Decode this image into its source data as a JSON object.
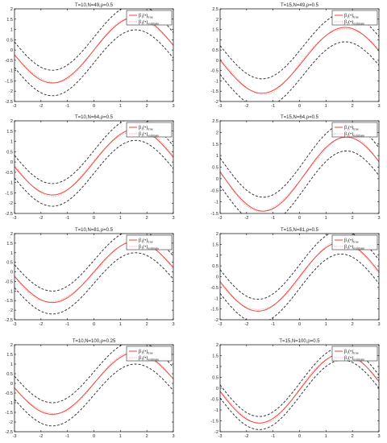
{
  "figure": {
    "legend_labels": [
      {
        "base": "β",
        "sub1": "1",
        "mid": "(•)",
        "sub2": "true"
      },
      {
        "base": "β",
        "sub1": "1",
        "mid": "(•)",
        "sub2": "estimate"
      }
    ],
    "colors": {
      "true_curve": "#e8463f",
      "estimate_curve": "#e8463f",
      "band": "#222222",
      "axes": "#000000"
    }
  },
  "chart_data": [
    {
      "type": "line",
      "title": "T=10,N=49,ρ=0.5",
      "xlim": [
        -3,
        3
      ],
      "ylim": [
        -2.5,
        2
      ],
      "xticks": [
        "-3",
        "-2",
        "-1",
        "0",
        "1",
        "2",
        "3"
      ],
      "yticks": [
        "-2.5",
        "-2",
        "-1.5",
        "-1",
        "-0.5",
        "0",
        "0.5",
        "1",
        "1.5",
        "2"
      ],
      "series": [
        {
          "name": "β1(•)true"
        },
        {
          "name": "β1(•)estimate"
        }
      ]
    },
    {
      "type": "line",
      "title": "T=15,N=49,ρ=0.5",
      "xlim": [
        -3,
        3
      ],
      "ylim": [
        -2,
        2.5
      ],
      "xticks": [
        "-3",
        "-2",
        "-1",
        "0",
        "1",
        "2",
        "3"
      ],
      "yticks": [
        "-2",
        "-1.5",
        "-1",
        "-0.5",
        "0",
        "0.5",
        "1",
        "1.5",
        "2",
        "2.5"
      ],
      "series": [
        {
          "name": "β1(•)true"
        },
        {
          "name": "β1(•)estimate"
        }
      ]
    },
    {
      "type": "line",
      "title": "T=10,N=64,ρ=0.5",
      "xlim": [
        -3,
        3
      ],
      "ylim": [
        -2.5,
        2
      ],
      "xticks": [
        "-3",
        "-2",
        "-1",
        "0",
        "1",
        "2",
        "3"
      ],
      "yticks": [
        "-2.5",
        "-2",
        "-1.5",
        "-1",
        "-0.5",
        "0",
        "0.5",
        "1",
        "1.5",
        "2"
      ],
      "series": [
        {
          "name": "β1(•)true"
        },
        {
          "name": "β1(•)estimate"
        }
      ]
    },
    {
      "type": "line",
      "title": "T=15,N=64,ρ=0.5",
      "xlim": [
        -3,
        3
      ],
      "ylim": [
        -1.5,
        2.5
      ],
      "xticks": [
        "-3",
        "-2",
        "-1",
        "0",
        "1",
        "2",
        "3"
      ],
      "yticks": [
        "-1.5",
        "-1",
        "-0.5",
        "0",
        "0.5",
        "1",
        "1.5",
        "2",
        "2.5"
      ],
      "series": [
        {
          "name": "β1(•)true"
        },
        {
          "name": "β1(•)estimate"
        }
      ]
    },
    {
      "type": "line",
      "title": "T=10,N=81,ρ=0.5",
      "xlim": [
        -3,
        3
      ],
      "ylim": [
        -2.5,
        2
      ],
      "xticks": [
        "-3",
        "-2",
        "-1",
        "0",
        "1",
        "2",
        "3"
      ],
      "yticks": [
        "-2.5",
        "-2",
        "-1.5",
        "-1",
        "-0.5",
        "0",
        "0.5",
        "1",
        "1.5",
        "2"
      ],
      "series": [
        {
          "name": "β1(•)true"
        },
        {
          "name": "β1(•)estimate"
        }
      ]
    },
    {
      "type": "line",
      "title": "T=15,N=81,ρ=0.5",
      "xlim": [
        -3,
        3
      ],
      "ylim": [
        -2,
        2
      ],
      "xticks": [
        "-3",
        "-2",
        "-1",
        "0",
        "1",
        "2",
        "3"
      ],
      "yticks": [
        "-2",
        "-1.5",
        "-1",
        "-0.5",
        "0",
        "0.5",
        "1",
        "1.5",
        "2"
      ],
      "series": [
        {
          "name": "β1(•)true"
        },
        {
          "name": "β1(•)estimate"
        }
      ]
    },
    {
      "type": "line",
      "title": "T=10,N=100,ρ=0.25",
      "xlim": [
        -3,
        3
      ],
      "ylim": [
        -2.5,
        2
      ],
      "xticks": [
        "-3",
        "-2",
        "-1",
        "0",
        "1",
        "2",
        "3"
      ],
      "yticks": [
        "-2.5",
        "-2",
        "-1.5",
        "-1",
        "-0.5",
        "0",
        "0.5",
        "1",
        "1.5",
        "2"
      ],
      "series": [
        {
          "name": "β1(•)true"
        },
        {
          "name": "β1(•)estimate"
        }
      ]
    },
    {
      "type": "line",
      "title": "T=15,N=100,ρ=0.5",
      "xlim": [
        -3,
        3
      ],
      "ylim": [
        -2,
        2
      ],
      "xticks": [
        "-3",
        "-2",
        "-1",
        "0",
        "1",
        "2",
        "3"
      ],
      "yticks": [
        "-2",
        "-1.5",
        "-1",
        "-0.5",
        "0",
        "0.5",
        "1",
        "1.5",
        "2"
      ],
      "series": [
        {
          "name": "β1(•)true"
        },
        {
          "name": "β1(•)estimate"
        }
      ]
    }
  ]
}
